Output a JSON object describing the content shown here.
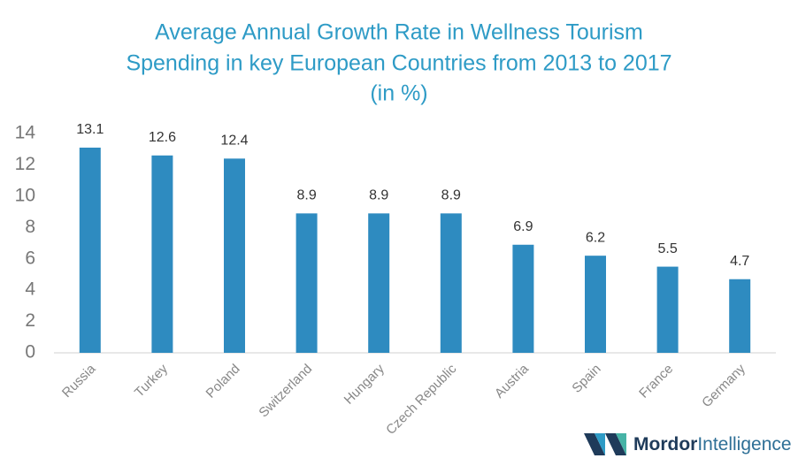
{
  "chart_data": {
    "type": "bar",
    "title": [
      "Average Annual Growth Rate in Wellness Tourism",
      "Spending in key European Countries from 2013 to 2017",
      "(in %)"
    ],
    "categories": [
      "Russia",
      "Turkey",
      "Poland",
      "Switzerland",
      "Hungary",
      "Czech Republic",
      "Austria",
      "Spain",
      "France",
      "Germany"
    ],
    "values": [
      13.1,
      12.6,
      12.4,
      8.9,
      8.9,
      8.9,
      6.9,
      6.2,
      5.5,
      4.7
    ],
    "color": "#2e8bc0",
    "ylim": [
      0,
      14
    ],
    "yticks": [
      0,
      2,
      4,
      6,
      8,
      10,
      12,
      14
    ],
    "grid": false
  },
  "logo": {
    "brand": "Mordor",
    "suffix": "Intelligence"
  }
}
